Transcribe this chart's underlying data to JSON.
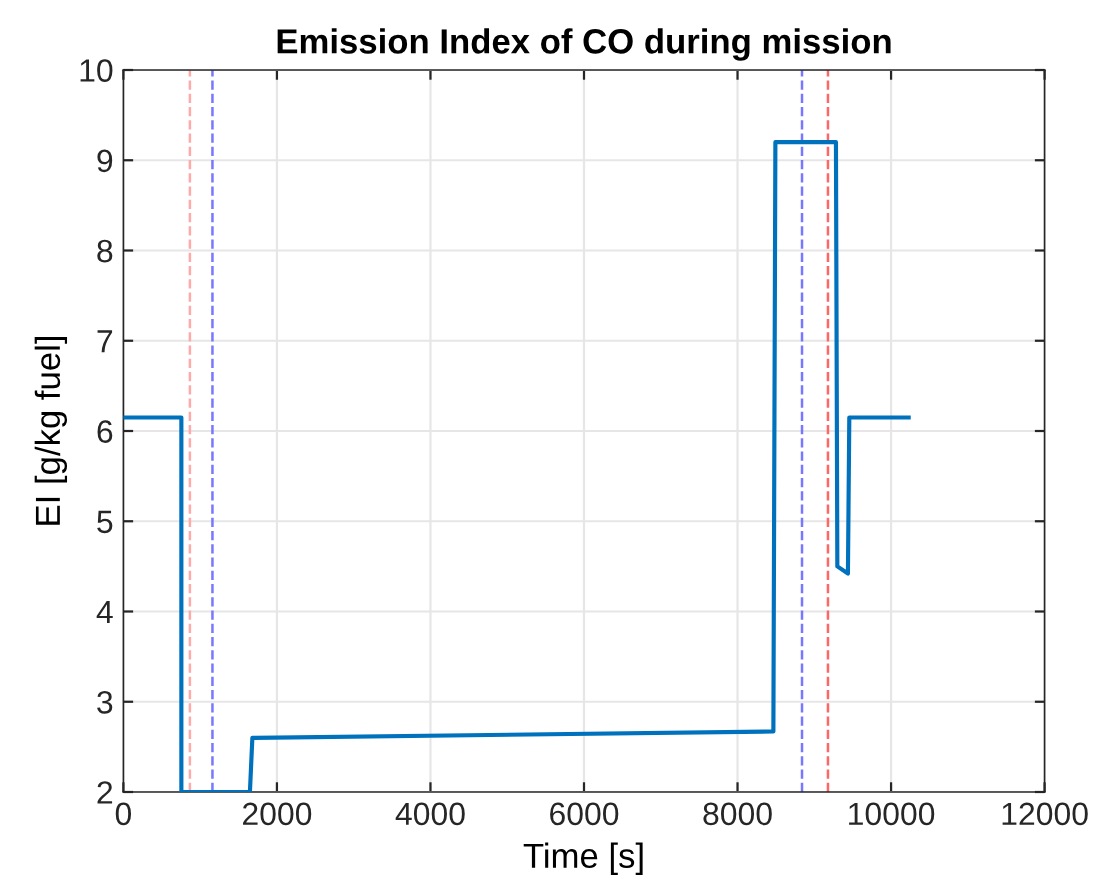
{
  "chart_data": {
    "type": "line",
    "title": "Emission Index of CO during mission",
    "xlabel": "Time [s]",
    "ylabel": "EI [g/kg fuel]",
    "series": [
      {
        "color": "#0072bd",
        "x": [
          0,
          755,
          755,
          1648,
          1680,
          8467,
          8493,
          9282,
          9300,
          9438,
          9456,
          10229
        ],
        "values": [
          6.15,
          6.15,
          2.0,
          2.0,
          2.6,
          2.67,
          9.2,
          9.2,
          4.5,
          4.42,
          6.15,
          6.15
        ]
      }
    ],
    "xlim": [
      0,
      12000
    ],
    "xticks": [
      0,
      2000,
      4000,
      6000,
      8000,
      10000,
      12000
    ],
    "ylim": [
      2,
      10
    ],
    "yticks": [
      2,
      3,
      4,
      5,
      6,
      7,
      8,
      9,
      10
    ],
    "grid": true,
    "ref_lines": [
      {
        "axis": "x",
        "value": 866,
        "color": "#ffaaaa",
        "line_style": "dashed"
      },
      {
        "axis": "x",
        "value": 1160,
        "color": "#7777ff",
        "line_style": "dashed"
      },
      {
        "axis": "x",
        "value": 8840,
        "color": "#7777ff",
        "line_style": "dashed"
      },
      {
        "axis": "x",
        "value": 9178,
        "color": "#ff6666",
        "line_style": "dashed"
      }
    ]
  }
}
